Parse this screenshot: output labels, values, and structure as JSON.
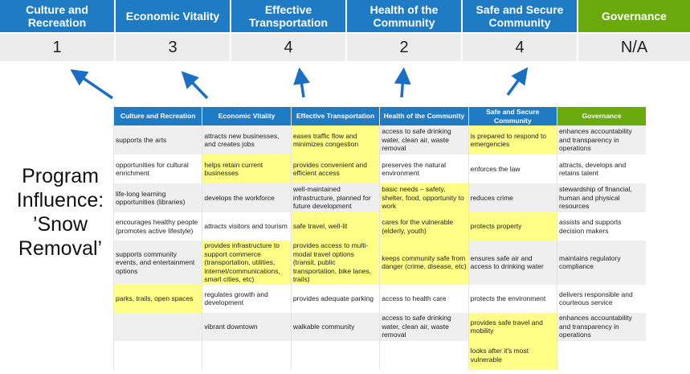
{
  "categories": [
    "Culture and Recreation",
    "Economic Vitality",
    "Effective Transportation",
    "Health of the Community",
    "Safe and Secure Community",
    "Governance"
  ],
  "scores": [
    "1",
    "3",
    "4",
    "2",
    "4",
    "N/A"
  ],
  "program_label": "Program Influence: ’Snow Removal’",
  "table": {
    "headers": [
      "Culture and Recreation",
      "Economic Vitality",
      "Effective Transportation",
      "Health of the Community",
      "Safe and Secure Community",
      "Governance"
    ],
    "rows": [
      [
        "supports the arts",
        "attracts new businesses, and creates jobs",
        "eases traffic flow and minimizes congestion",
        "access to safe drinking water, clean air, waste removal",
        "is prepared to respond to emergencies",
        "enhances accountability and transparency in operations"
      ],
      [
        "opportunities for cultural enrichment",
        "helps retain current businesses",
        "provides convenient and efficient access",
        "preserves the natural environment",
        "enforces the law",
        "attracts, develops and retains talent"
      ],
      [
        "life-long learning opportunities (libraries)",
        "develops the workforce",
        "well-maintained infrastructure, planned for future development",
        "basic needs – safety, shelter, food, opportunity to work",
        "reduces crime",
        "stewardship of financial, human and physical resources"
      ],
      [
        "encourages healthy people (promotes active lifestyle)",
        "attracts visitors and tourism",
        "safe travel, well-lit",
        "cares for the vulnerable (elderly, youth)",
        "protects property",
        "assists and supports decision makers"
      ],
      [
        "supports community events, and entertainment options",
        "provides infrastructure to support commerce (transportation, utilities, internet/communications, smart cities, etc)",
        "provides access to multi-modal travel options (transit, public transportation, bike lanes, trails)",
        "keeps community safe from danger (crime, disease, etc)",
        "ensures safe air and access to drinking water",
        "maintains regulatory compliance"
      ],
      [
        "parks, trails, open spaces",
        "regulates growth and development",
        "provides adequate parking",
        "access to health care",
        "protects the environment",
        "delivers responsible and courteous service"
      ],
      [
        "",
        "vibrant downtown",
        "walkable community",
        "access to safe drinking water, clean air, waste removal",
        "provides safe travel and mobility",
        "enhances accountability and transparency in operations"
      ],
      [
        "",
        "",
        "",
        "",
        "looks after it's most vulnerable",
        ""
      ]
    ],
    "highlighted": [
      [
        2,
        4
      ],
      [
        1,
        2
      ],
      [
        3
      ],
      [
        2,
        3,
        4
      ],
      [
        1,
        2,
        3
      ],
      [
        0
      ],
      [
        4
      ],
      [
        4
      ]
    ]
  },
  "colors": {
    "header_blue": "#1f7cc4",
    "governance_green": "#6aaa0c",
    "highlight_yellow": "#ffff88",
    "arrow_blue": "#1a6fc4"
  }
}
